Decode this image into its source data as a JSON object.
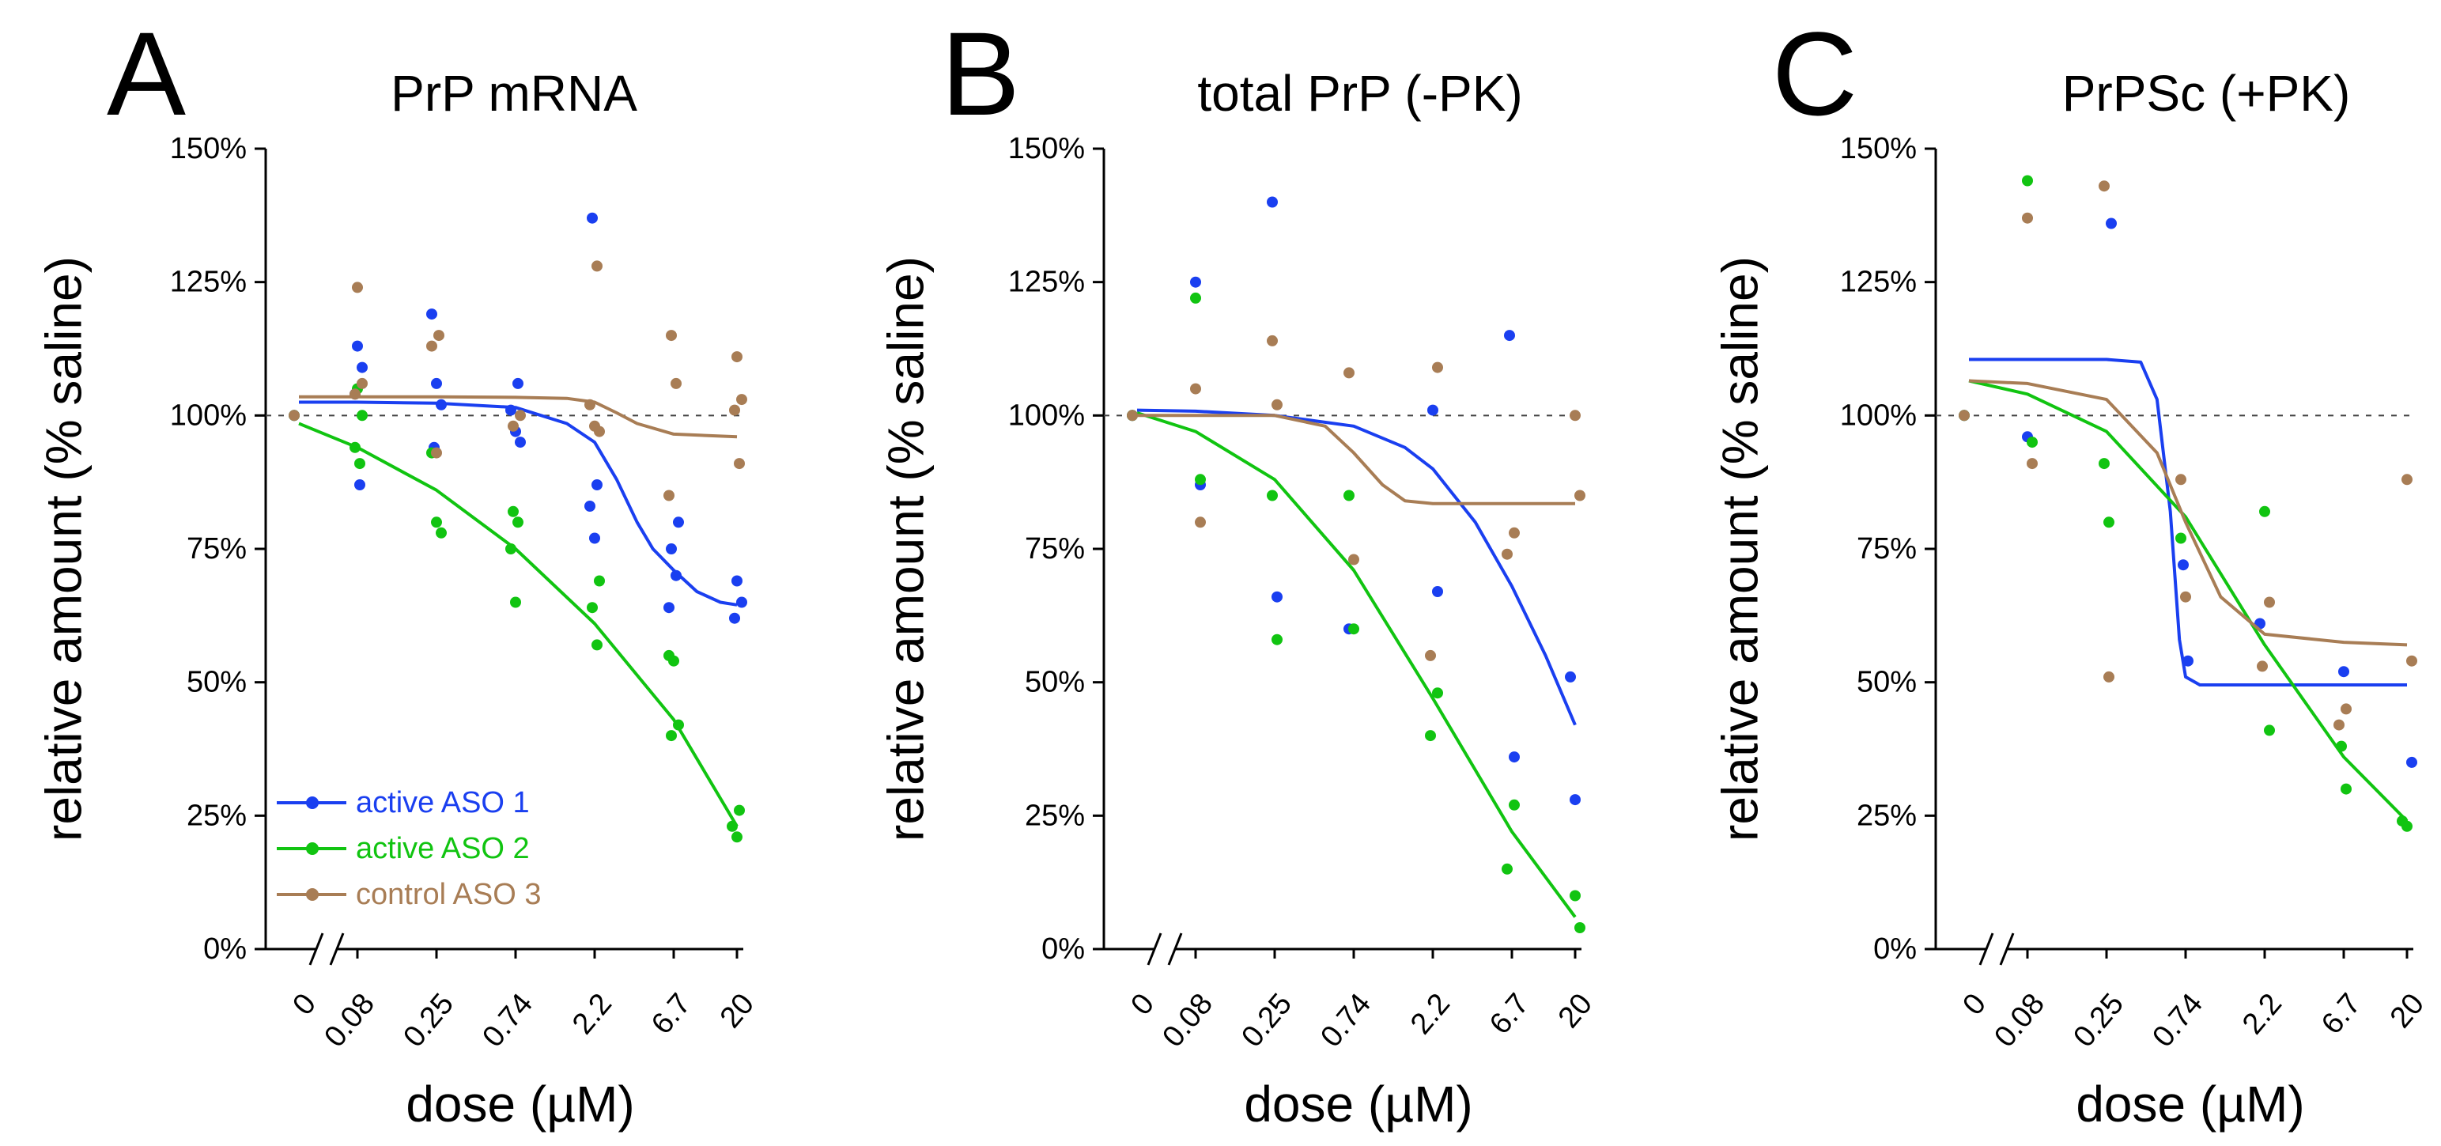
{
  "chart_data": [
    {
      "type": "scatter",
      "panel_letter": "A",
      "title": "PrP mRNA",
      "ylabel": "relative amount (% saline)",
      "xlabel": "dose (µM)",
      "x_tick_labels": [
        "0",
        "0.08",
        "0.25",
        "0.74",
        "2.2",
        "6.7",
        "20"
      ],
      "y_tick_labels": [
        "0%",
        "25%",
        "50%",
        "75%",
        "100%",
        "125%",
        "150%"
      ],
      "ylim": [
        0,
        150
      ],
      "reference_line": 100,
      "axis_break": true,
      "legend": {
        "position": "bottom-left",
        "entries": [
          {
            "name": "active ASO 1",
            "color": "#1a3ff0"
          },
          {
            "name": "active ASO 2",
            "color": "#11c411"
          },
          {
            "name": "control ASO 3",
            "color": "#a87d55"
          }
        ]
      },
      "series": [
        {
          "name": "active ASO 1",
          "color": "#1a3ff0",
          "points": [
            [
              0,
              100
            ],
            [
              0.08,
              113
            ],
            [
              0.08,
              109
            ],
            [
              0.08,
              104
            ],
            [
              0.08,
              87
            ],
            [
              0.25,
              119
            ],
            [
              0.25,
              106
            ],
            [
              0.25,
              102
            ],
            [
              0.25,
              94
            ],
            [
              0.74,
              106
            ],
            [
              0.74,
              101
            ],
            [
              0.74,
              97
            ],
            [
              0.74,
              95
            ],
            [
              2.2,
              137
            ],
            [
              2.2,
              87
            ],
            [
              2.2,
              83
            ],
            [
              2.2,
              77
            ],
            [
              6.7,
              80
            ],
            [
              6.7,
              75
            ],
            [
              6.7,
              70
            ],
            [
              6.7,
              64
            ],
            [
              20,
              69
            ],
            [
              20,
              65
            ],
            [
              20,
              62
            ]
          ],
          "curve": [
            [
              0,
              102.5
            ],
            [
              0.08,
              102.5
            ],
            [
              0.25,
              102.3
            ],
            [
              0.74,
              101.5
            ],
            [
              1.5,
              98.5
            ],
            [
              2.2,
              95
            ],
            [
              3,
              88
            ],
            [
              4,
              80
            ],
            [
              5,
              75
            ],
            [
              6.7,
              71
            ],
            [
              10,
              67
            ],
            [
              15,
              65
            ],
            [
              20,
              64.5
            ]
          ]
        },
        {
          "name": "active ASO 2",
          "color": "#11c411",
          "points": [
            [
              0,
              100
            ],
            [
              0.08,
              105
            ],
            [
              0.08,
              100
            ],
            [
              0.08,
              94
            ],
            [
              0.08,
              91
            ],
            [
              0.25,
              93
            ],
            [
              0.25,
              80
            ],
            [
              0.25,
              78
            ],
            [
              0.74,
              82
            ],
            [
              0.74,
              80
            ],
            [
              0.74,
              75
            ],
            [
              0.74,
              65
            ],
            [
              2.2,
              69
            ],
            [
              2.2,
              64
            ],
            [
              2.2,
              57
            ],
            [
              6.7,
              55
            ],
            [
              6.7,
              54
            ],
            [
              6.7,
              42
            ],
            [
              6.7,
              40
            ],
            [
              20,
              26
            ],
            [
              20,
              23
            ],
            [
              20,
              21
            ]
          ],
          "curve": [
            [
              0,
              98.5
            ],
            [
              0.08,
              94
            ],
            [
              0.25,
              86
            ],
            [
              0.74,
              75
            ],
            [
              2.2,
              61
            ],
            [
              6.7,
              43
            ],
            [
              20,
              23
            ]
          ]
        },
        {
          "name": "control ASO 3",
          "color": "#a87d55",
          "points": [
            [
              0,
              100
            ],
            [
              0.08,
              124
            ],
            [
              0.08,
              106
            ],
            [
              0.08,
              104
            ],
            [
              0.25,
              115
            ],
            [
              0.25,
              113
            ],
            [
              0.25,
              93
            ],
            [
              0.74,
              100
            ],
            [
              0.74,
              98
            ],
            [
              2.2,
              128
            ],
            [
              2.2,
              102
            ],
            [
              2.2,
              98
            ],
            [
              2.2,
              97
            ],
            [
              6.7,
              115
            ],
            [
              6.7,
              106
            ],
            [
              6.7,
              85
            ],
            [
              20,
              111
            ],
            [
              20,
              103
            ],
            [
              20,
              101
            ],
            [
              20,
              91
            ]
          ],
          "curve": [
            [
              0,
              103.5
            ],
            [
              0.08,
              103.5
            ],
            [
              0.25,
              103.5
            ],
            [
              0.74,
              103.4
            ],
            [
              1.5,
              103.2
            ],
            [
              2.2,
              102.5
            ],
            [
              3,
              100.5
            ],
            [
              4,
              98.5
            ],
            [
              6.7,
              96.5
            ],
            [
              20,
              96
            ]
          ]
        }
      ]
    },
    {
      "type": "scatter",
      "panel_letter": "B",
      "title": "total PrP (-PK)",
      "ylabel": "relative amount (% saline)",
      "xlabel": "dose (µM)",
      "x_tick_labels": [
        "0",
        "0.08",
        "0.25",
        "0.74",
        "2.2",
        "6.7",
        "20"
      ],
      "y_tick_labels": [
        "0%",
        "25%",
        "50%",
        "75%",
        "100%",
        "125%",
        "150%"
      ],
      "ylim": [
        0,
        150
      ],
      "reference_line": 100,
      "axis_break": true,
      "series": [
        {
          "name": "active ASO 1",
          "color": "#1a3ff0",
          "points": [
            [
              0,
              100
            ],
            [
              0.08,
              125
            ],
            [
              0.08,
              87
            ],
            [
              0.25,
              140
            ],
            [
              0.25,
              66
            ],
            [
              0.74,
              60
            ],
            [
              2.2,
              101
            ],
            [
              2.2,
              67
            ],
            [
              6.7,
              115
            ],
            [
              6.7,
              36
            ],
            [
              20,
              51
            ],
            [
              20,
              28
            ]
          ],
          "curve": [
            [
              0,
              101
            ],
            [
              0.08,
              100.8
            ],
            [
              0.25,
              100
            ],
            [
              0.74,
              98
            ],
            [
              1.5,
              94
            ],
            [
              2.2,
              90
            ],
            [
              4,
              80
            ],
            [
              6.7,
              68
            ],
            [
              12,
              55
            ],
            [
              20,
              42
            ]
          ]
        },
        {
          "name": "active ASO 2",
          "color": "#11c411",
          "points": [
            [
              0,
              100
            ],
            [
              0.08,
              122
            ],
            [
              0.08,
              88
            ],
            [
              0.25,
              85
            ],
            [
              0.25,
              58
            ],
            [
              0.74,
              85
            ],
            [
              0.74,
              60
            ],
            [
              2.2,
              48
            ],
            [
              2.2,
              40
            ],
            [
              6.7,
              27
            ],
            [
              6.7,
              15
            ],
            [
              20,
              10
            ],
            [
              20,
              4
            ]
          ],
          "curve": [
            [
              0,
              100.5
            ],
            [
              0.08,
              97
            ],
            [
              0.25,
              88
            ],
            [
              0.74,
              71
            ],
            [
              2.2,
              47
            ],
            [
              6.7,
              22
            ],
            [
              20,
              6
            ]
          ]
        },
        {
          "name": "control ASO 3",
          "color": "#a87d55",
          "points": [
            [
              0,
              100
            ],
            [
              0.08,
              105
            ],
            [
              0.08,
              80
            ],
            [
              0.25,
              114
            ],
            [
              0.25,
              102
            ],
            [
              0.74,
              108
            ],
            [
              0.74,
              73
            ],
            [
              2.2,
              109
            ],
            [
              2.2,
              55
            ],
            [
              6.7,
              78
            ],
            [
              6.7,
              74
            ],
            [
              20,
              100
            ],
            [
              20,
              85
            ]
          ],
          "curve": [
            [
              0,
              100
            ],
            [
              0.08,
              100
            ],
            [
              0.25,
              100
            ],
            [
              0.5,
              98
            ],
            [
              0.74,
              93
            ],
            [
              1.1,
              87
            ],
            [
              1.5,
              84
            ],
            [
              2.2,
              83.5
            ],
            [
              6.7,
              83.5
            ],
            [
              20,
              83.5
            ]
          ]
        }
      ]
    },
    {
      "type": "scatter",
      "panel_letter": "C",
      "title": "PrPSc (+PK)",
      "ylabel": "relative amount (% saline)",
      "xlabel": "dose (µM)",
      "x_tick_labels": [
        "0",
        "0.08",
        "0.25",
        "0.74",
        "2.2",
        "6.7",
        "20"
      ],
      "y_tick_labels": [
        "0%",
        "25%",
        "50%",
        "75%",
        "100%",
        "125%",
        "150%"
      ],
      "ylim": [
        0,
        150
      ],
      "reference_line": 100,
      "axis_break": true,
      "series": [
        {
          "name": "active ASO 1",
          "color": "#1a3ff0",
          "points": [
            [
              0,
              100
            ],
            [
              0.08,
              96
            ],
            [
              0.25,
              136
            ],
            [
              0.74,
              72
            ],
            [
              0.74,
              54
            ],
            [
              2.2,
              61
            ],
            [
              6.7,
              52
            ],
            [
              20,
              35
            ]
          ],
          "curve": [
            [
              0,
              110.5
            ],
            [
              0.08,
              110.5
            ],
            [
              0.25,
              110.5
            ],
            [
              0.4,
              110
            ],
            [
              0.5,
              103
            ],
            [
              0.6,
              82
            ],
            [
              0.68,
              58
            ],
            [
              0.74,
              51
            ],
            [
              0.9,
              49.5
            ],
            [
              2.2,
              49.5
            ],
            [
              20,
              49.5
            ]
          ]
        },
        {
          "name": "active ASO 2",
          "color": "#11c411",
          "points": [
            [
              0,
              100
            ],
            [
              0.08,
              144
            ],
            [
              0.08,
              95
            ],
            [
              0.25,
              91
            ],
            [
              0.25,
              80
            ],
            [
              0.74,
              77
            ],
            [
              2.2,
              82
            ],
            [
              2.2,
              41
            ],
            [
              6.7,
              38
            ],
            [
              6.7,
              30
            ],
            [
              20,
              24
            ],
            [
              20,
              23
            ]
          ],
          "curve": [
            [
              0,
              106.5
            ],
            [
              0.08,
              104
            ],
            [
              0.25,
              97
            ],
            [
              0.74,
              81
            ],
            [
              2.2,
              57
            ],
            [
              6.7,
              36
            ],
            [
              20,
              24
            ]
          ]
        },
        {
          "name": "control ASO 3",
          "color": "#a87d55",
          "points": [
            [
              0,
              100
            ],
            [
              0.08,
              137
            ],
            [
              0.08,
              91
            ],
            [
              0.25,
              143
            ],
            [
              0.25,
              51
            ],
            [
              0.74,
              88
            ],
            [
              0.74,
              66
            ],
            [
              2.2,
              65
            ],
            [
              2.2,
              53
            ],
            [
              6.7,
              45
            ],
            [
              6.7,
              42
            ],
            [
              20,
              88
            ],
            [
              20,
              54
            ]
          ],
          "curve": [
            [
              0,
              106.5
            ],
            [
              0.08,
              106
            ],
            [
              0.25,
              103
            ],
            [
              0.5,
              93
            ],
            [
              0.74,
              80
            ],
            [
              1.2,
              66
            ],
            [
              2.2,
              59
            ],
            [
              6.7,
              57.5
            ],
            [
              20,
              57
            ]
          ]
        }
      ]
    }
  ]
}
